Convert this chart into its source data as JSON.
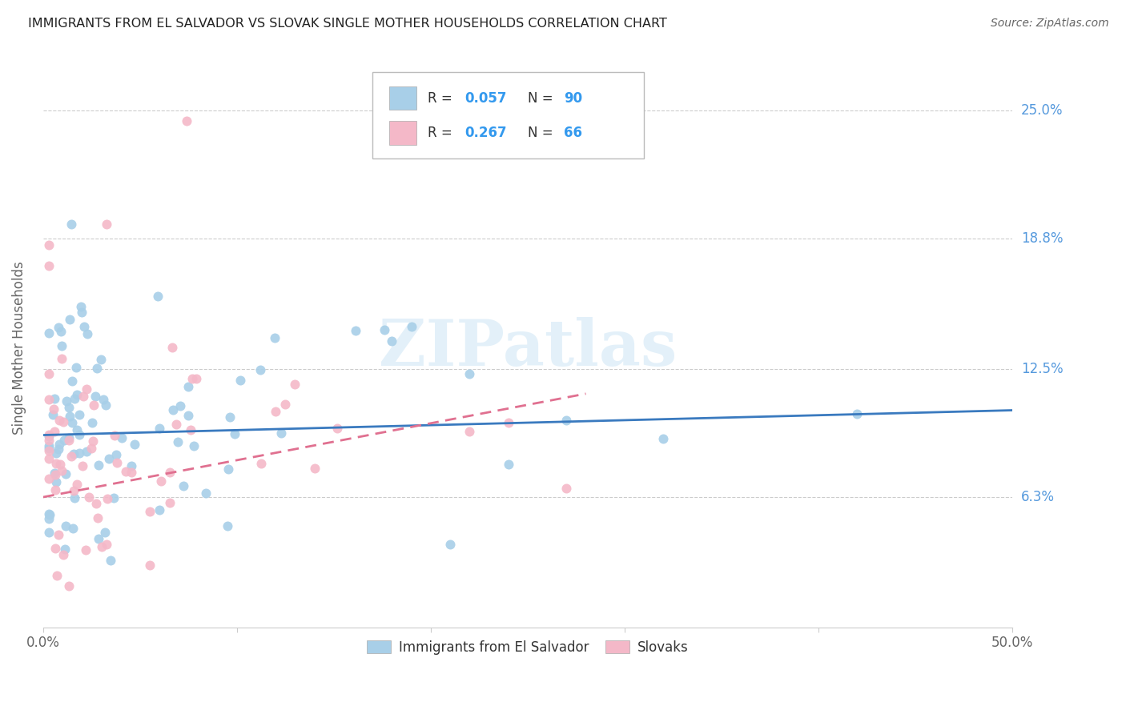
{
  "title": "IMMIGRANTS FROM EL SALVADOR VS SLOVAK SINGLE MOTHER HOUSEHOLDS CORRELATION CHART",
  "source": "Source: ZipAtlas.com",
  "ylabel": "Single Mother Households",
  "yticks": [
    0.063,
    0.125,
    0.188,
    0.25
  ],
  "ytick_labels": [
    "6.3%",
    "12.5%",
    "18.8%",
    "25.0%"
  ],
  "legend_label1": "Immigrants from El Salvador",
  "legend_label2": "Slovaks",
  "blue_color": "#a8cfe8",
  "pink_color": "#f4b8c8",
  "blue_line_color": "#3a7abf",
  "pink_line_color": "#e07090",
  "R1": 0.057,
  "N1": 90,
  "R2": 0.267,
  "N2": 66,
  "xlim": [
    0.0,
    0.5
  ],
  "ylim": [
    0.0,
    0.27
  ],
  "watermark": "ZIPatlas",
  "blue_trend_x0": 0.0,
  "blue_trend_y0": 0.093,
  "blue_trend_x1": 0.5,
  "blue_trend_y1": 0.105,
  "pink_trend_x0": 0.0,
  "pink_trend_y0": 0.063,
  "pink_trend_x1": 0.28,
  "pink_trend_y1": 0.113
}
